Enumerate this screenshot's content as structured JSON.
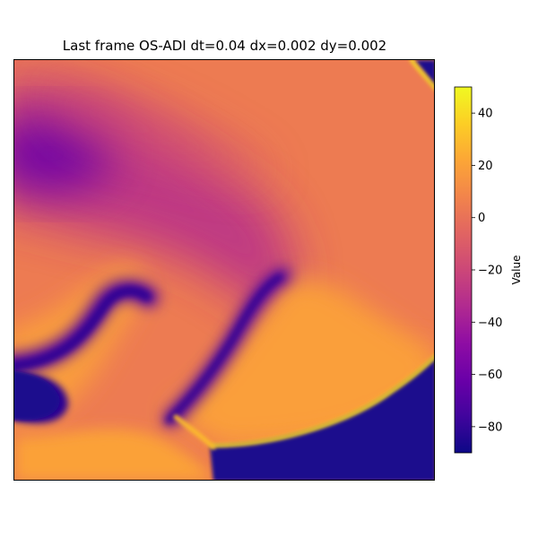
{
  "chart_data": {
    "type": "heatmap",
    "title": "Last frame OS-ADI dt=0.04 dx=0.002 dy=0.002",
    "colormap": "plasma",
    "colorbar": {
      "label": "Value",
      "range": [
        -90,
        50
      ],
      "ticks": [
        40,
        20,
        0,
        -20,
        -40,
        -60,
        -80
      ],
      "tick_labels": [
        "40",
        "20",
        "0",
        "−20",
        "−40",
        "−60",
        "−80"
      ]
    },
    "axes": {
      "x_ticks_visible": false,
      "y_ticks_visible": false
    },
    "field_regions": {
      "background_value": 4,
      "resting_region_value": -86,
      "depolarised_value": 19,
      "wavefront_value": 42,
      "refractory_band_values": [
        -62,
        -82,
        -70,
        -75
      ]
    }
  }
}
